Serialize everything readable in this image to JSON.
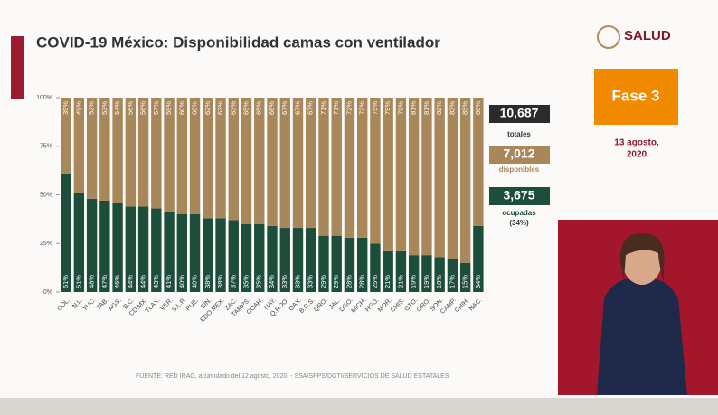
{
  "header": {
    "brand": "SALUD",
    "phase": "Fase 3",
    "date_line1": "13 agosto,",
    "date_line2": "2020"
  },
  "summary": {
    "total": "10,687",
    "total_label": "totales",
    "available": "7,012",
    "occupied": "3,675",
    "occupied_pct": "(34%)"
  },
  "footer": {
    "source": "FUENTE: RED IRAG, acumulado del 12 agosto, 2020. -  SSA/SPPS/DGTI/SERVICIOS DE SALUD ESTATALES"
  },
  "chart_data": {
    "type": "stacked_bar",
    "title": "COVID-19 México: Disponibilidad camas con ventilador",
    "categories": [
      "COL.",
      "N.L.",
      "YUC.",
      "TAB.",
      "AGS.",
      "B.C.",
      "CD.MX.",
      "TLAX.",
      "VER.",
      "S.L.P.",
      "PUE.",
      "SIN.",
      "EDO.MEX.",
      "ZAC.",
      "TAMPS.",
      "COAH.",
      "NAY.",
      "Q.ROO.",
      "OAX.",
      "B.C.S.",
      "QRO.",
      "JAL.",
      "DGO.",
      "MICH.",
      "HGO.",
      "MOR.",
      "CHIS.",
      "GTO.",
      "GRO.",
      "SON.",
      "CAMP.",
      "CHIH.",
      "NAC."
    ],
    "series": [
      {
        "name": "ocupadas",
        "color": "#1d4d3b",
        "values": [
          61,
          51,
          48,
          47,
          46,
          44,
          44,
          43,
          41,
          40,
          40,
          38,
          38,
          37,
          35,
          35,
          34,
          33,
          33,
          33,
          29,
          29,
          28,
          28,
          25,
          21,
          21,
          19,
          19,
          18,
          17,
          15,
          34
        ],
        "value_labels": [
          "61%",
          "51%",
          "48%",
          "47%",
          "46%",
          "44%",
          "44%",
          "43%",
          "41%",
          "40%",
          "40%",
          "38%",
          "38%",
          "37%",
          "35%",
          "35%",
          "34%",
          "33%",
          "33%",
          "33%",
          "29%",
          "29%",
          "28%",
          "28%",
          "25%",
          "21%",
          "21%",
          "19%",
          "19%",
          "18%",
          "17%",
          "15%",
          "34%"
        ]
      },
      {
        "name": "disponibles",
        "color": "#a8875a",
        "values": [
          39,
          49,
          52,
          53,
          54,
          56,
          56,
          57,
          59,
          60,
          60,
          62,
          62,
          63,
          65,
          65,
          66,
          67,
          67,
          67,
          71,
          71,
          72,
          72,
          75,
          79,
          79,
          81,
          81,
          82,
          83,
          85,
          66
        ],
        "value_labels": [
          "39%",
          "49%",
          "52%",
          "53%",
          "54%",
          "56%",
          "56%",
          "57%",
          "59%",
          "60%",
          "60%",
          "62%",
          "62%",
          "63%",
          "65%",
          "65%",
          "66%",
          "67%",
          "67%",
          "67%",
          "71%",
          "71%",
          "72%",
          "72%",
          "75%",
          "79%",
          "79%",
          "81%",
          "81%",
          "82%",
          "83%",
          "85%",
          "66%"
        ]
      }
    ],
    "ylim": [
      0,
      100
    ],
    "yticks": [
      {
        "value": 0,
        "label": "0%"
      },
      {
        "value": 25,
        "label": "25%"
      },
      {
        "value": 50,
        "label": "50%"
      },
      {
        "value": 75,
        "label": "75%"
      },
      {
        "value": 100,
        "label": "100%"
      }
    ]
  }
}
